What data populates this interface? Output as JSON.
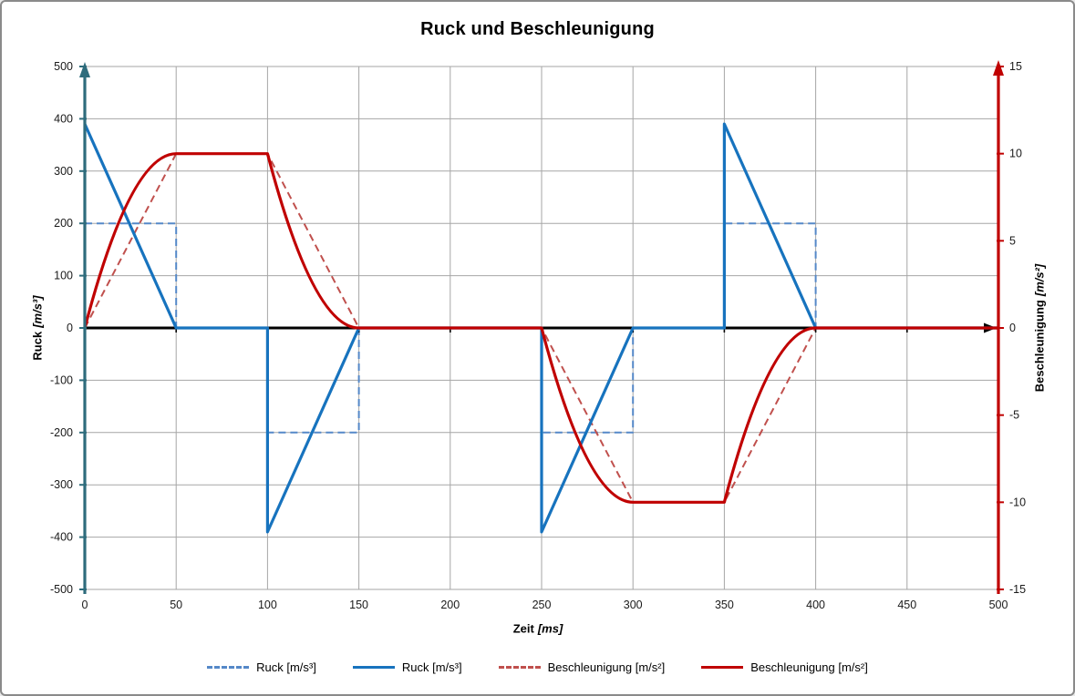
{
  "title": "Ruck und Beschleunigung",
  "axes": {
    "x": {
      "name": "Zeit",
      "unit": "[ms]",
      "min": 0,
      "max": 500,
      "tick_step": 50,
      "ticks": [
        "0",
        "50",
        "100",
        "150",
        "200",
        "250",
        "300",
        "350",
        "400",
        "450",
        "500"
      ]
    },
    "y_left": {
      "name": "Ruck",
      "unit": "[m/s³]",
      "min": -500,
      "max": 500,
      "tick_step": 100,
      "ticks": [
        "500",
        "400",
        "300",
        "200",
        "100",
        "0",
        "-100",
        "-200",
        "-300",
        "-400",
        "-500"
      ]
    },
    "y_right": {
      "name": "Beschleunigung",
      "unit": "[m/s²]",
      "min": -15,
      "max": 15,
      "tick_step": 5,
      "ticks": [
        "15",
        "10",
        "5",
        "0",
        "-5",
        "-10",
        "-15"
      ]
    }
  },
  "colors": {
    "ruck_solid": "#1773BE",
    "ruck_dashed": "#5588C8",
    "beschleunigung_solid": "#C00000",
    "beschleunigung_dashed": "#C0504D",
    "left_axis": "#2E6C7C",
    "zero_axis": "#000000",
    "right_axis": "#C00000",
    "gridline": "#A6A6A6",
    "tick_text": "#1a1a1a"
  },
  "chart_data": {
    "type": "line",
    "title": "Ruck und Beschleunigung",
    "xlabel": "Zeit [ms]",
    "ylabel_left": "Ruck [m/s³]",
    "ylabel_right": "Beschleunigung [m/s²]",
    "xlim": [
      0,
      500
    ],
    "ylim_left": [
      -500,
      500
    ],
    "ylim_right": [
      -15,
      15
    ],
    "grid": true,
    "legend_position": "bottom",
    "series": [
      {
        "id": "ruck-dashed",
        "legend_label": "Ruck [m/s³]",
        "axis": "left",
        "line_style": "dashed",
        "color_key": "ruck_dashed",
        "points": [
          [
            0,
            200
          ],
          [
            50,
            200
          ],
          [
            50,
            0
          ],
          [
            100,
            0
          ],
          [
            100,
            -200
          ],
          [
            150,
            -200
          ],
          [
            150,
            0
          ],
          [
            250,
            0
          ],
          [
            250,
            -200
          ],
          [
            300,
            -200
          ],
          [
            300,
            0
          ],
          [
            350,
            0
          ],
          [
            350,
            200
          ],
          [
            400,
            200
          ],
          [
            400,
            0
          ],
          [
            500,
            0
          ]
        ]
      },
      {
        "id": "ruck-solid",
        "legend_label": "Ruck [m/s³]",
        "axis": "left",
        "line_style": "solid",
        "color_key": "ruck_solid",
        "points": [
          [
            0,
            390
          ],
          [
            50,
            0
          ],
          [
            100,
            0
          ],
          [
            100,
            -390
          ],
          [
            150,
            0
          ],
          [
            250,
            0
          ],
          [
            250,
            -390
          ],
          [
            300,
            0
          ],
          [
            350,
            0
          ],
          [
            350,
            390
          ],
          [
            400,
            0
          ],
          [
            500,
            0
          ]
        ]
      },
      {
        "id": "beschleunigung-dashed",
        "legend_label": "Beschleunigung [m/s²]",
        "axis": "right",
        "line_style": "dashed",
        "color_key": "beschleunigung_dashed",
        "points": [
          [
            0,
            0
          ],
          [
            50,
            10
          ],
          [
            100,
            10
          ],
          [
            150,
            0
          ],
          [
            250,
            0
          ],
          [
            300,
            -10
          ],
          [
            350,
            -10
          ],
          [
            400,
            0
          ],
          [
            500,
            0
          ]
        ]
      },
      {
        "id": "beschleunigung-solid",
        "legend_label": "Beschleunigung [m/s²]",
        "axis": "right",
        "line_style": "solid",
        "color_key": "beschleunigung_solid",
        "segments": [
          {
            "from": [
              0,
              0
            ],
            "to": [
              50,
              10
            ],
            "curve": "quad-flat-end"
          },
          {
            "from": [
              50,
              10
            ],
            "to": [
              100,
              10
            ],
            "curve": "line"
          },
          {
            "from": [
              100,
              10
            ],
            "to": [
              150,
              0
            ],
            "curve": "quad-flat-end"
          },
          {
            "from": [
              150,
              0
            ],
            "to": [
              250,
              0
            ],
            "curve": "line"
          },
          {
            "from": [
              250,
              0
            ],
            "to": [
              300,
              -10
            ],
            "curve": "quad-flat-end"
          },
          {
            "from": [
              300,
              -10
            ],
            "to": [
              350,
              -10
            ],
            "curve": "line"
          },
          {
            "from": [
              350,
              -10
            ],
            "to": [
              400,
              0
            ],
            "curve": "quad-flat-end"
          },
          {
            "from": [
              400,
              0
            ],
            "to": [
              500,
              0
            ],
            "curve": "line"
          }
        ]
      }
    ]
  },
  "legend": {
    "items": [
      {
        "label": "Ruck [m/s³]",
        "style": "dashed",
        "color_key": "ruck_dashed"
      },
      {
        "label": "Ruck [m/s³]",
        "style": "solid",
        "color_key": "ruck_solid"
      },
      {
        "label": "Beschleunigung [m/s²]",
        "style": "dashed",
        "color_key": "beschleunigung_dashed"
      },
      {
        "label": "Beschleunigung [m/s²]",
        "style": "solid",
        "color_key": "beschleunigung_solid"
      }
    ]
  }
}
